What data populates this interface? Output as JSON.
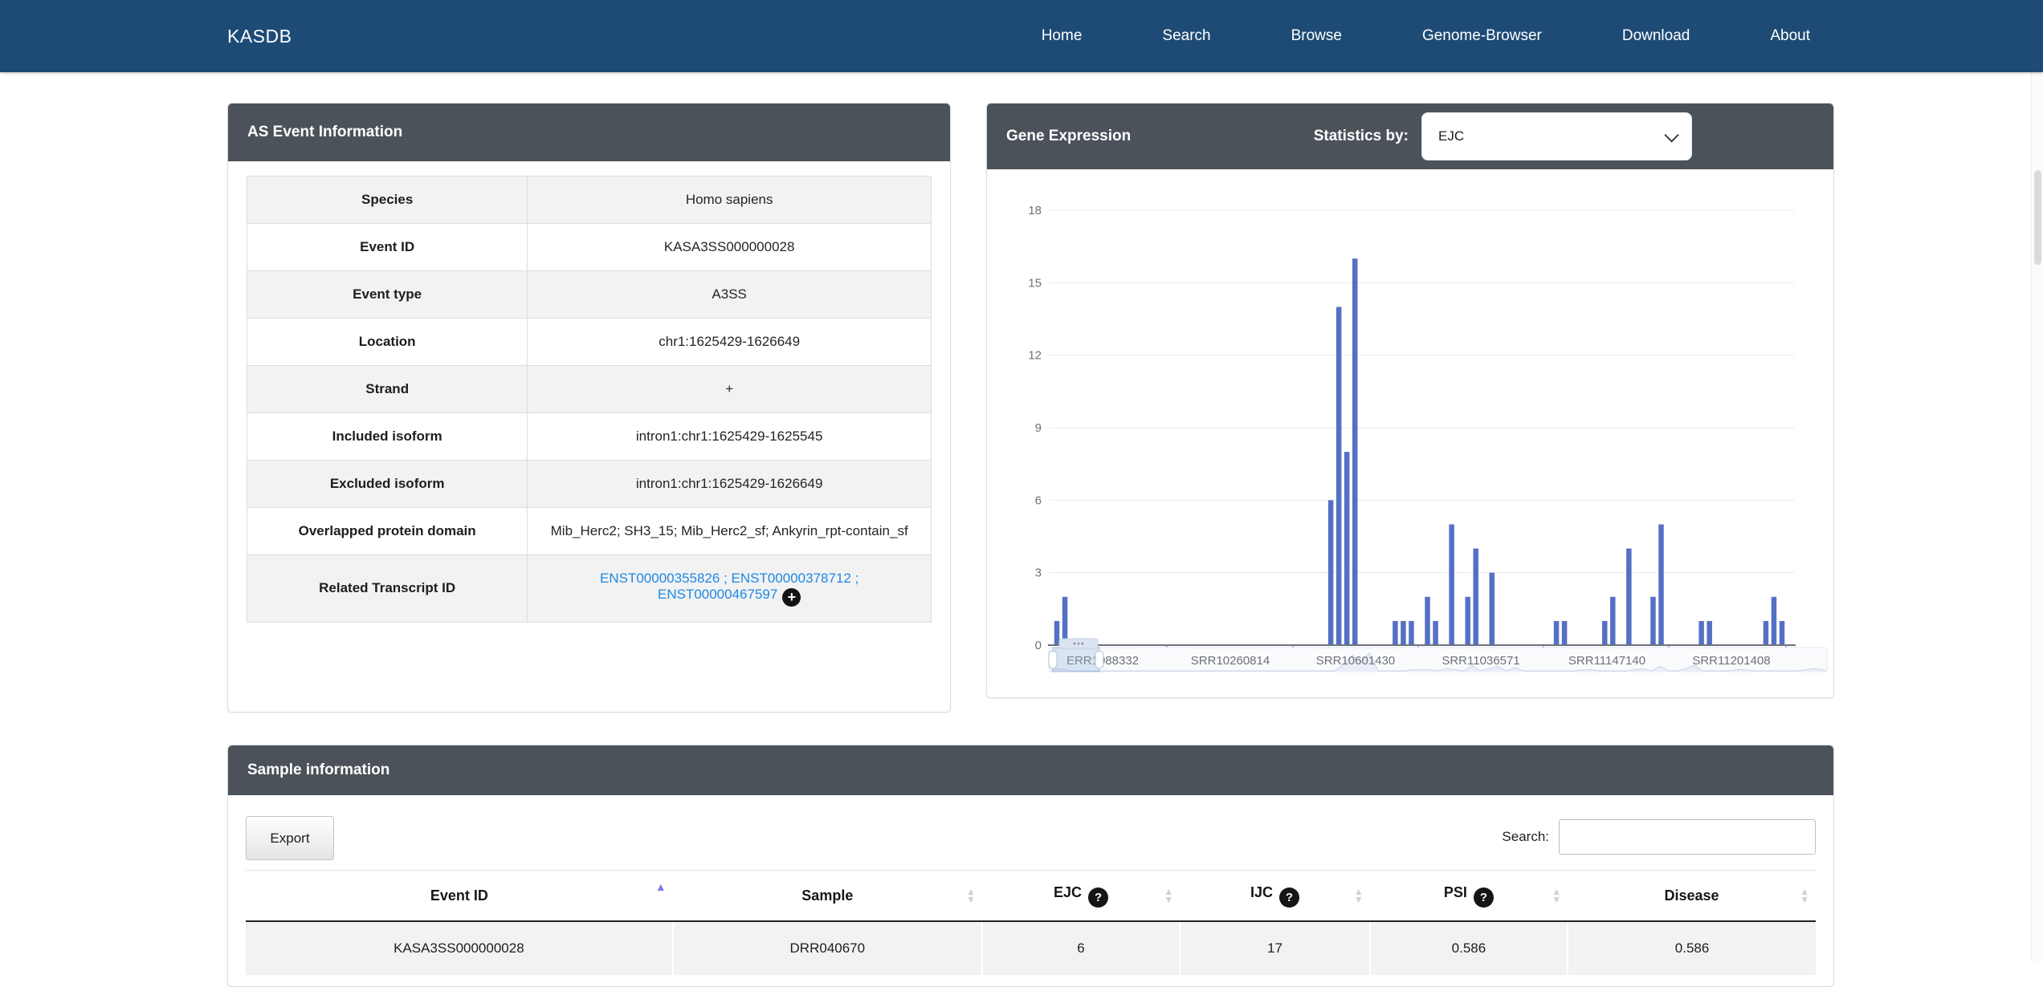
{
  "navbar": {
    "brand": "KASDB",
    "items": [
      "Home",
      "Search",
      "Browse",
      "Genome-Browser",
      "Download",
      "About"
    ]
  },
  "as_event_panel": {
    "title": "AS Event Information",
    "rows": [
      {
        "label": "Species",
        "value": "Homo sapiens"
      },
      {
        "label": "Event ID",
        "value": "KASA3SS000000028"
      },
      {
        "label": "Event type",
        "value": "A3SS"
      },
      {
        "label": "Location",
        "value": "chr1:1625429-1626649"
      },
      {
        "label": "Strand",
        "value": "+"
      },
      {
        "label": "Included isoform",
        "value": "intron1:chr1:1625429-1625545"
      },
      {
        "label": "Excluded isoform",
        "value": "intron1:chr1:1625429-1626649"
      },
      {
        "label": "Overlapped protein domain",
        "value": "Mib_Herc2; SH3_15; Mib_Herc2_sf; Ankyrin_rpt-contain_sf"
      },
      {
        "label": "Related Transcript ID",
        "links": [
          "ENST00000355826",
          "ENST00000378712",
          "ENST00000467597"
        ],
        "link_separator": " ; "
      }
    ]
  },
  "gene_expression_panel": {
    "title": "Gene Expression",
    "statistics_by_label": "Statistics by:",
    "selected_statistic": "EJC"
  },
  "chart_data": {
    "type": "bar",
    "title": "",
    "xlabel": "",
    "ylabel": "",
    "ylim": [
      0,
      18
    ],
    "yticks": [
      0,
      3,
      6,
      9,
      12,
      15,
      18
    ],
    "grid": true,
    "legend_position": "none",
    "bar_color": "#5470c6",
    "x_count": 91,
    "visible_x_labels": [
      "ERR1088332",
      "SRR10260814",
      "SRR10601430",
      "SRR11036571",
      "SRR11147140",
      "SRR11201408"
    ],
    "values": [
      1,
      2,
      0,
      0,
      0,
      0,
      0,
      0,
      0,
      0,
      0,
      0,
      0,
      0,
      0,
      0,
      0,
      0,
      0,
      0,
      0,
      0,
      0,
      0,
      0,
      0,
      0,
      0,
      0,
      0,
      0,
      0,
      0,
      0,
      6,
      14,
      8,
      16,
      0,
      0,
      0,
      0,
      1,
      1,
      1,
      0,
      2,
      1,
      0,
      5,
      0,
      2,
      4,
      0,
      3,
      0,
      0,
      0,
      0,
      0,
      0,
      0,
      1,
      1,
      0,
      0,
      0,
      0,
      1,
      2,
      0,
      4,
      0,
      0,
      2,
      5,
      0,
      0,
      0,
      0,
      1,
      1,
      0,
      0,
      0,
      0,
      0,
      0,
      1,
      2,
      1
    ],
    "datazoom": {
      "window_start_index": 0,
      "window_end_index": 5
    }
  },
  "sample_panel": {
    "title": "Sample information",
    "export_label": "Export",
    "search_label": "Search:",
    "search_value": "",
    "columns": [
      {
        "label": "Event ID",
        "help": false,
        "sorted": "asc"
      },
      {
        "label": "Sample",
        "help": false,
        "sorted": "none"
      },
      {
        "label": "EJC",
        "help": true,
        "sorted": "none"
      },
      {
        "label": "IJC",
        "help": true,
        "sorted": "none"
      },
      {
        "label": "PSI",
        "help": true,
        "sorted": "none"
      },
      {
        "label": "Disease",
        "help": false,
        "sorted": "none"
      }
    ],
    "rows": [
      [
        "KASA3SS000000028",
        "DRR040670",
        "6",
        "17",
        "0.586",
        "0.586"
      ]
    ]
  },
  "colors": {
    "navbar": "#1e4b75",
    "panel_header": "#4b5259",
    "bar": "#5470c6",
    "link": "#1e88e5",
    "sort_active": "#7b7fe0",
    "stripe": "#f2f2f2"
  }
}
